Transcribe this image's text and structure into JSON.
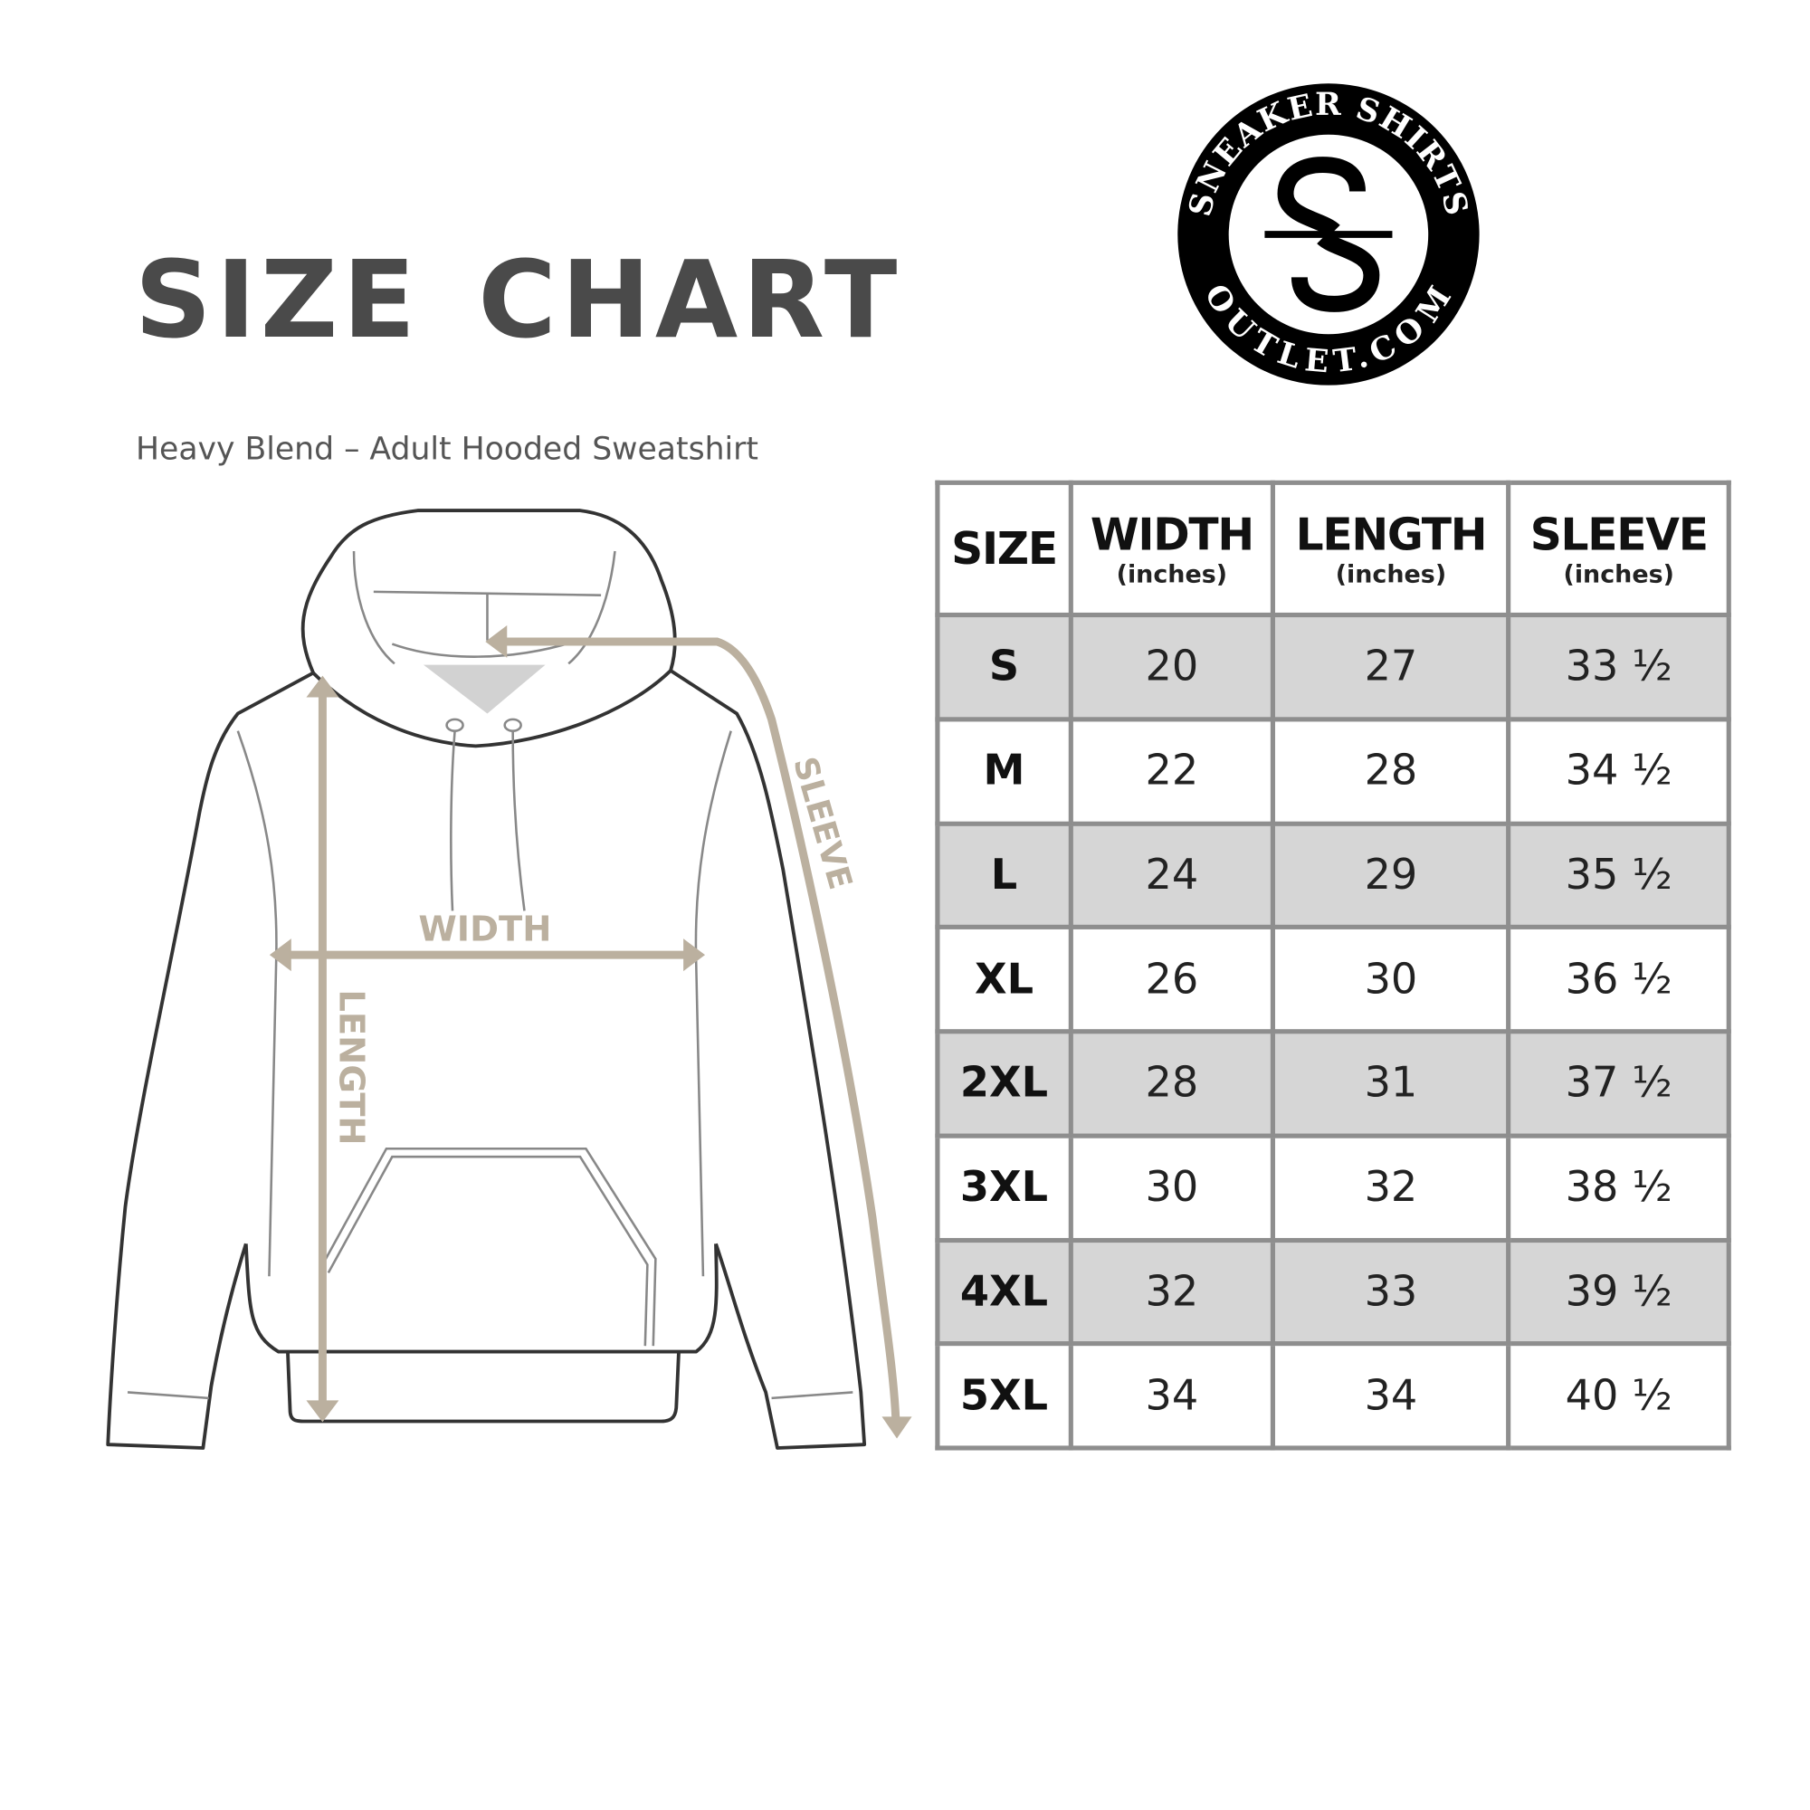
{
  "title": "SIZE CHART",
  "subtitle": "Heavy Blend – Adult Hooded Sweatshirt",
  "logo": {
    "top_text": "SNEAKER SHIRTS",
    "bottom_text": "OUTLET.COM",
    "monogram": "SS"
  },
  "diagram": {
    "width_label": "WIDTH",
    "length_label": "LENGTH",
    "sleeve_label": "SLEEVE",
    "arrow_color": "#bbb09f"
  },
  "table": {
    "headers": [
      {
        "label": "SIZE",
        "unit": ""
      },
      {
        "label": "WIDTH",
        "unit": "(inches)"
      },
      {
        "label": "LENGTH",
        "unit": "(inches)"
      },
      {
        "label": "SLEEVE",
        "unit": "(inches)"
      }
    ],
    "rows": [
      [
        "S",
        "20",
        "27",
        "33 ½"
      ],
      [
        "M",
        "22",
        "28",
        "34 ½"
      ],
      [
        "L",
        "24",
        "29",
        "35 ½"
      ],
      [
        "XL",
        "26",
        "30",
        "36 ½"
      ],
      [
        "2XL",
        "28",
        "31",
        "37 ½"
      ],
      [
        "3XL",
        "30",
        "32",
        "38 ½"
      ],
      [
        "4XL",
        "32",
        "33",
        "39 ½"
      ],
      [
        "5XL",
        "34",
        "34",
        "40 ½"
      ]
    ],
    "shade_color": "#d6d6d6",
    "border_color": "#8e8e8e"
  }
}
